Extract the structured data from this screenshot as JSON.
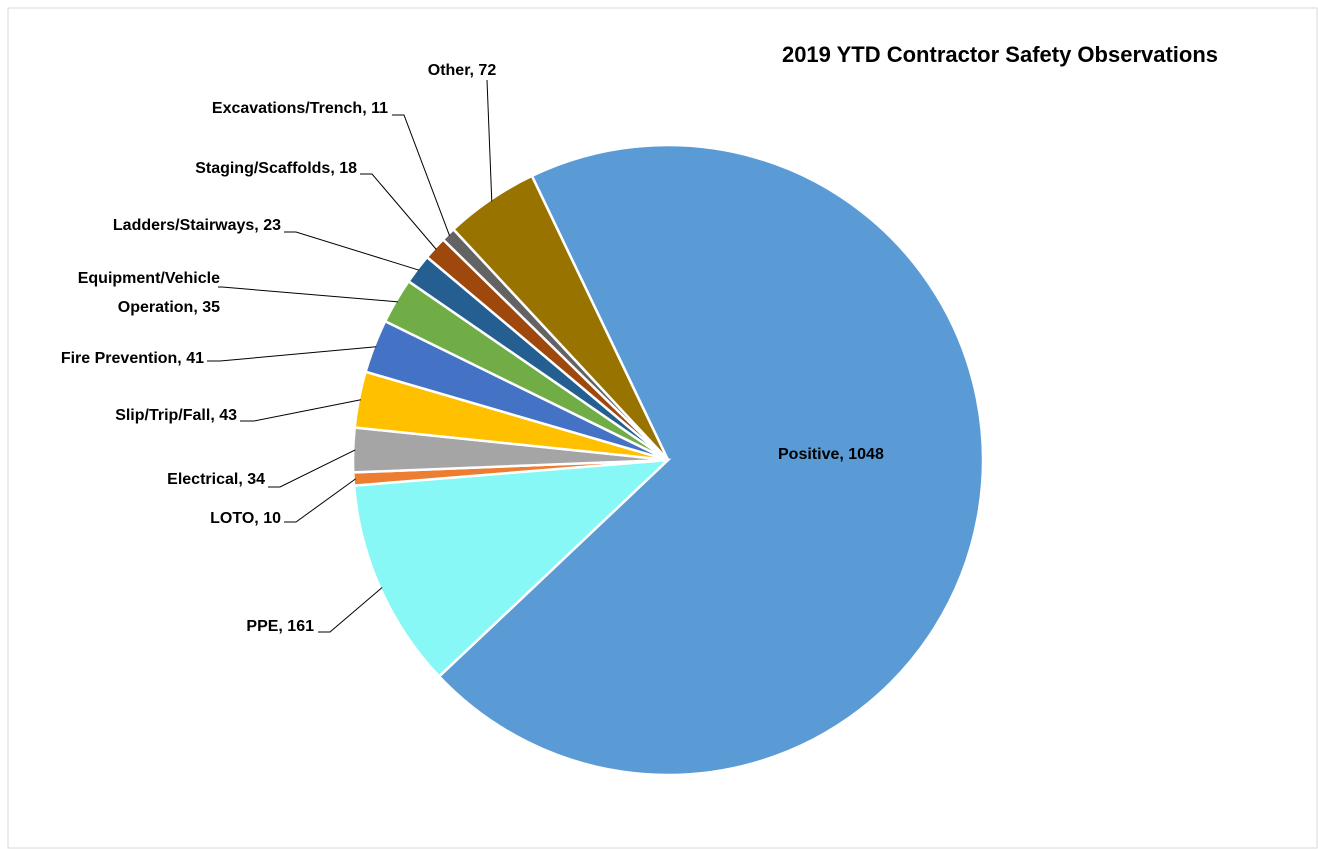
{
  "chart_data": {
    "type": "pie",
    "title": "2019 YTD Contractor Safety Observations",
    "values": [
      1048,
      161,
      10,
      34,
      43,
      41,
      35,
      23,
      18,
      11,
      72
    ],
    "value_labels": [
      "Positive, 1048",
      "PPE, 161",
      "LOTO, 10",
      "Electrical, 34",
      "Slip/Trip/Fall, 43",
      "Fire Prevention, 41",
      "Equipment/Vehicle Operation, 35",
      "Ladders/Stairways, 23",
      "Staging/Scaffolds, 18",
      "Excavations/Trench, 11",
      "Other, 72"
    ],
    "colors": [
      "#5b9bd5",
      "#87f8f6",
      "#ed7d31",
      "#a5a5a5",
      "#ffc000",
      "#4472c4",
      "#70ad47",
      "#255e91",
      "#9e480e",
      "#636363",
      "#997300"
    ]
  }
}
